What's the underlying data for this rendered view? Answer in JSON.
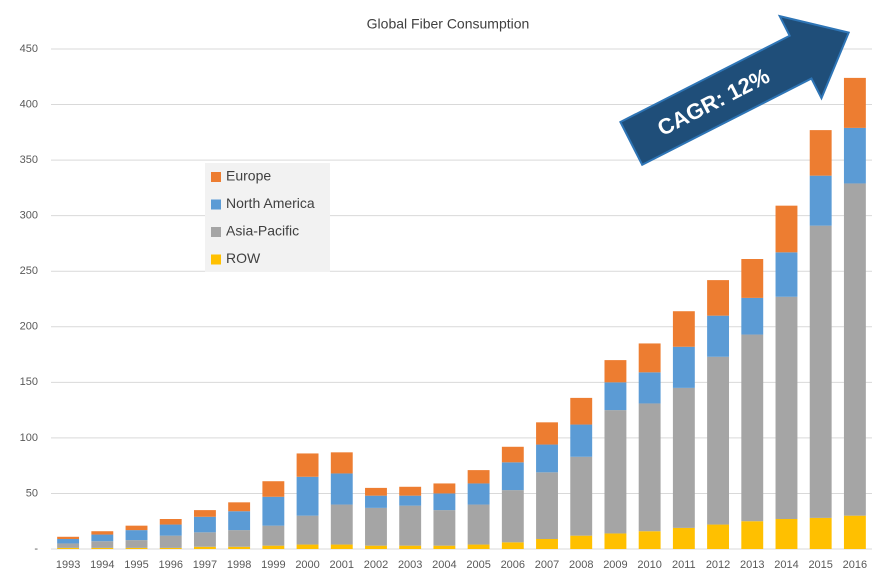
{
  "chart_data": {
    "type": "stacked_bar",
    "title": "Global Fiber Consumption",
    "annotation": "CAGR: 12%",
    "categories": [
      "1993",
      "1994",
      "1995",
      "1996",
      "1997",
      "1998",
      "1999",
      "2000",
      "2001",
      "2002",
      "2003",
      "2004",
      "2005",
      "2006",
      "2007",
      "2008",
      "2009",
      "2010",
      "2011",
      "2012",
      "2013",
      "2014",
      "2015",
      "2016"
    ],
    "series": [
      {
        "name": "Europe",
        "color": "#ed7d31",
        "values": [
          2,
          3,
          4,
          5,
          6,
          8,
          14,
          21,
          19,
          7,
          8,
          9,
          12,
          14,
          20,
          24,
          20,
          26,
          32,
          32,
          35,
          42,
          41,
          45
        ]
      },
      {
        "name": "North America",
        "color": "#5b9bd5",
        "values": [
          4,
          6,
          9,
          10,
          14,
          17,
          26,
          35,
          28,
          11,
          9,
          15,
          19,
          25,
          25,
          29,
          25,
          28,
          37,
          37,
          33,
          40,
          45,
          50
        ]
      },
      {
        "name": "Asia-Pacific",
        "color": "#a5a5a5",
        "values": [
          4,
          6,
          7,
          11,
          13,
          15,
          18,
          26,
          36,
          34,
          36,
          32,
          36,
          47,
          60,
          71,
          111,
          115,
          126,
          151,
          168,
          200,
          263,
          299
        ]
      },
      {
        "name": "ROW",
        "color": "#ffc000",
        "values": [
          1,
          1,
          1,
          1,
          2,
          2,
          3,
          4,
          4,
          3,
          3,
          3,
          4,
          6,
          9,
          12,
          14,
          16,
          19,
          22,
          25,
          27,
          28,
          30
        ]
      }
    ],
    "ylim": [
      0,
      450
    ],
    "yticks": [
      {
        "value": 0,
        "label": "-"
      },
      50,
      100,
      150,
      200,
      250,
      300,
      350,
      400,
      450
    ],
    "grid": true,
    "legend": "left"
  }
}
